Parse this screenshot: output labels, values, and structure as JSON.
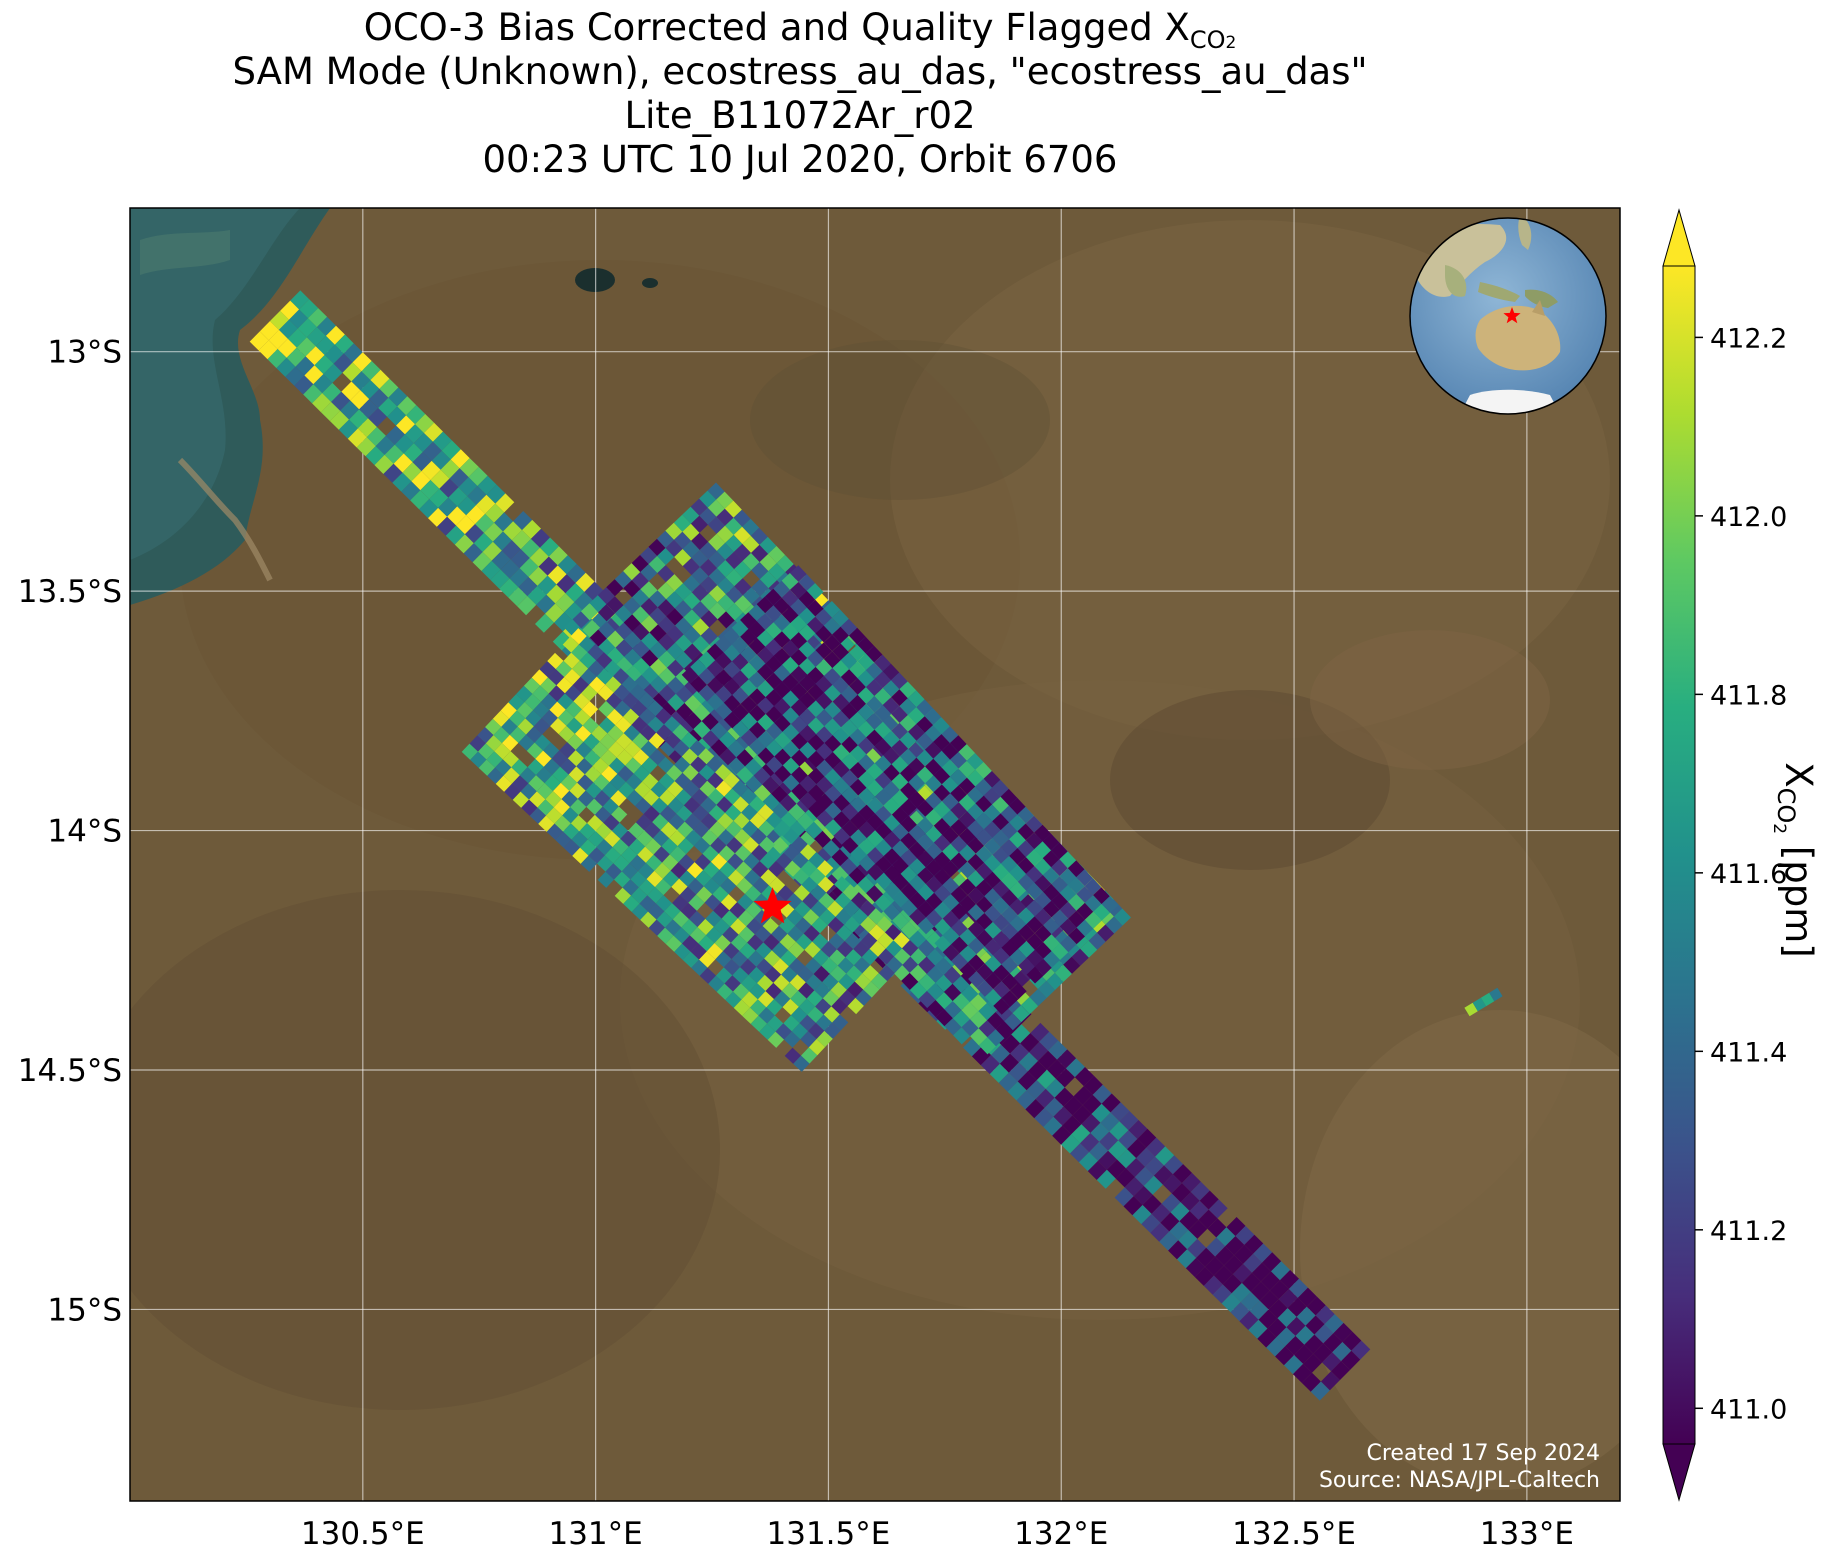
{
  "title": {
    "line1_prefix": "OCO-3 Bias Corrected and Quality Flagged X",
    "line1_sub": "CO",
    "line1_sub2": "2",
    "line2": "SAM Mode (Unknown), ecostress_au_das, \"ecostress_au_das\"",
    "line3": "Lite_B11072Ar_r02",
    "line4": "00:23 UTC 10 Jul 2020, Orbit 6706"
  },
  "map": {
    "lon_range": [
      130.0,
      133.2
    ],
    "lat_range": [
      -15.4,
      -12.7
    ],
    "x_ticks": [
      "130.5°E",
      "131°E",
      "131.5°E",
      "132°E",
      "132.5°E",
      "133°E"
    ],
    "x_tick_values": [
      130.5,
      131.0,
      131.5,
      132.0,
      132.5,
      133.0
    ],
    "y_ticks": [
      "13°S",
      "13.5°S",
      "14°S",
      "14.5°S",
      "15°S"
    ],
    "y_tick_values": [
      -13.0,
      -13.5,
      -14.0,
      -14.5,
      -15.0
    ],
    "gridlines": true,
    "target_marker": {
      "lon": 131.38,
      "lat": -14.16,
      "color": "#ff0000",
      "icon": "star-icon"
    },
    "inset": {
      "type": "globe",
      "icon": "globe-icon",
      "marker_color": "#ff0000"
    },
    "background": "satellite imagery"
  },
  "colorbar": {
    "label_prefix": "X",
    "label_sub": "CO",
    "label_sub2": "2",
    "label_suffix": " [ppm]",
    "ticks": [
      "411.0",
      "411.2",
      "411.4",
      "411.6",
      "411.8",
      "412.0",
      "412.2"
    ],
    "tick_values": [
      411.0,
      411.2,
      411.4,
      411.6,
      411.8,
      412.0,
      412.2
    ],
    "range": [
      410.96,
      412.28
    ],
    "extend": "both",
    "colormap": "viridis"
  },
  "credits": {
    "line1": "Created 17 Sep 2024",
    "line2": "Source: NASA/JPL-Caltech"
  }
}
